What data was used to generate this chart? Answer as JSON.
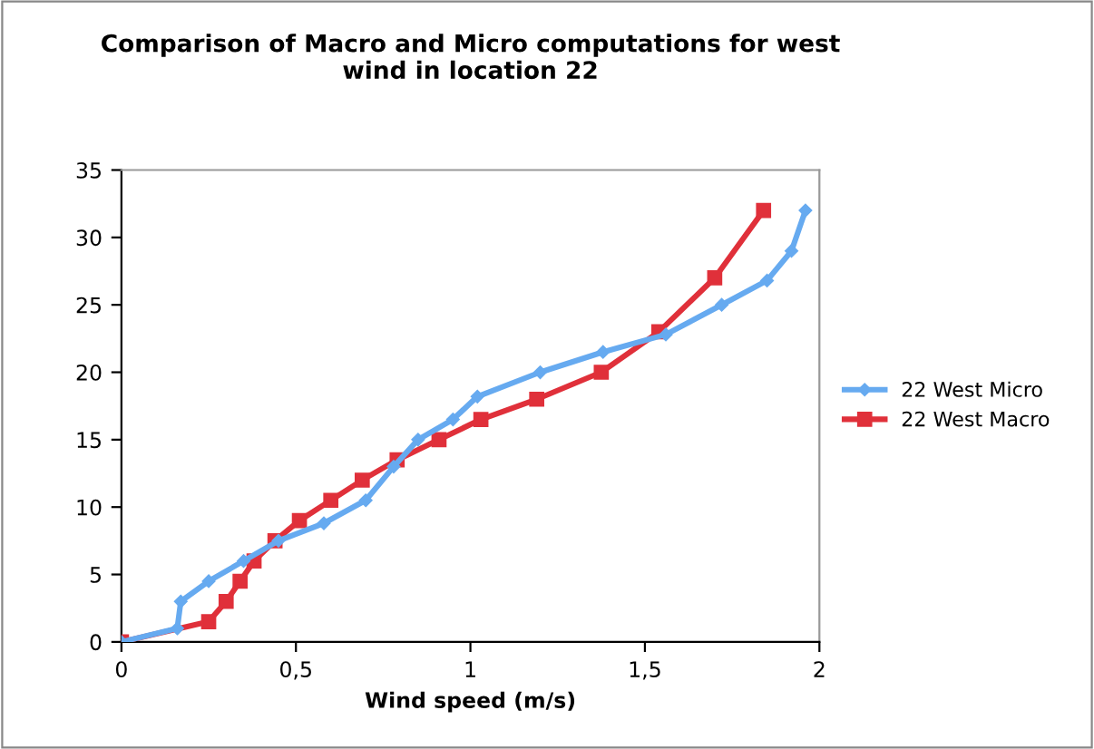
{
  "chart_data": {
    "type": "line",
    "title": "Comparison of Macro and Micro computations for west\nwind in location 22",
    "xlabel": "Wind speed (m/s)",
    "xlim": [
      0,
      2
    ],
    "xticks": [
      {
        "value": 0,
        "label": "0"
      },
      {
        "value": 0.5,
        "label": "0,5"
      },
      {
        "value": 1,
        "label": "1"
      },
      {
        "value": 1.5,
        "label": "1,5"
      },
      {
        "value": 2,
        "label": "2"
      }
    ],
    "ylim": [
      0,
      35
    ],
    "yticks": [
      0,
      5,
      10,
      15,
      20,
      25,
      30,
      35
    ],
    "grid": false,
    "legend": "right",
    "series": [
      {
        "name": "22 West Micro",
        "color": "#66aaf0",
        "marker": "diamond",
        "x": [
          0,
          0.16,
          0.17,
          0.25,
          0.35,
          0.45,
          0.58,
          0.7,
          0.78,
          0.85,
          0.95,
          1.02,
          1.2,
          1.38,
          1.56,
          1.72,
          1.85,
          1.92,
          1.96
        ],
        "values": [
          0,
          1,
          3,
          4.5,
          6,
          7.5,
          8.8,
          10.5,
          13,
          15,
          16.5,
          18.2,
          20,
          21.5,
          22.8,
          25,
          26.8,
          29,
          32
        ]
      },
      {
        "name": "22 West Macro",
        "color": "#e0303a",
        "marker": "square",
        "x": [
          0,
          0.25,
          0.3,
          0.34,
          0.38,
          0.44,
          0.51,
          0.6,
          0.69,
          0.79,
          0.91,
          1.03,
          1.19,
          1.375,
          1.54,
          1.7,
          1.84
        ],
        "values": [
          0,
          1.5,
          3,
          4.5,
          6,
          7.5,
          9,
          10.5,
          12,
          13.5,
          15,
          16.5,
          18,
          20,
          23,
          27,
          32
        ]
      }
    ]
  }
}
